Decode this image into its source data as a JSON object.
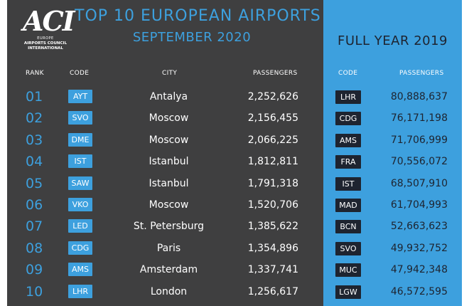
{
  "logo": {
    "mark": "ACI",
    "region": "EUROPE",
    "line1": "AIRPORTS COUNCIL",
    "line2": "INTERNATIONAL"
  },
  "title": "TOP 10 EUROPEAN AIRPORTS",
  "subtitle": "SEPTEMBER 2020",
  "full_year_title": "FULL YEAR  2019",
  "headers": {
    "rank": "RANK",
    "code": "CODE",
    "city": "CITY",
    "passengers": "PASSENGERS",
    "fy_code": "CODE",
    "fy_passengers": "PASSENGERS"
  },
  "colors": {
    "background": "#3f3f40",
    "accent": "#3da0de",
    "dark": "#1e2430"
  },
  "rows": [
    {
      "rank": "01",
      "code": "AYT",
      "city": "Antalya",
      "passengers": "2,252,626",
      "fy_code": "LHR",
      "fy_passengers": "80,888,637"
    },
    {
      "rank": "02",
      "code": "SVO",
      "city": "Moscow",
      "passengers": "2,156,455",
      "fy_code": "CDG",
      "fy_passengers": "76,171,198"
    },
    {
      "rank": "03",
      "code": "DME",
      "city": "Moscow",
      "passengers": "2,066,225",
      "fy_code": "AMS",
      "fy_passengers": "71,706,999"
    },
    {
      "rank": "04",
      "code": "IST",
      "city": "Istanbul",
      "passengers": "1,812,811",
      "fy_code": "FRA",
      "fy_passengers": "70,556,072"
    },
    {
      "rank": "05",
      "code": "SAW",
      "city": "Istanbul",
      "passengers": "1,791,318",
      "fy_code": "IST",
      "fy_passengers": "68,507,910"
    },
    {
      "rank": "06",
      "code": "VKO",
      "city": "Moscow",
      "passengers": "1,520,706",
      "fy_code": "MAD",
      "fy_passengers": "61,704,993"
    },
    {
      "rank": "07",
      "code": "LED",
      "city": "St. Petersburg",
      "passengers": "1,385,622",
      "fy_code": "BCN",
      "fy_passengers": "52,663,623"
    },
    {
      "rank": "08",
      "code": "CDG",
      "city": "Paris",
      "passengers": "1,354,896",
      "fy_code": "SVO",
      "fy_passengers": "49,932,752"
    },
    {
      "rank": "09",
      "code": "AMS",
      "city": "Amsterdam",
      "passengers": "1,337,741",
      "fy_code": "MUC",
      "fy_passengers": "47,942,348"
    },
    {
      "rank": "10",
      "code": "LHR",
      "city": "London",
      "passengers": "1,256,617",
      "fy_code": "LGW",
      "fy_passengers": "46,572,595"
    }
  ]
}
